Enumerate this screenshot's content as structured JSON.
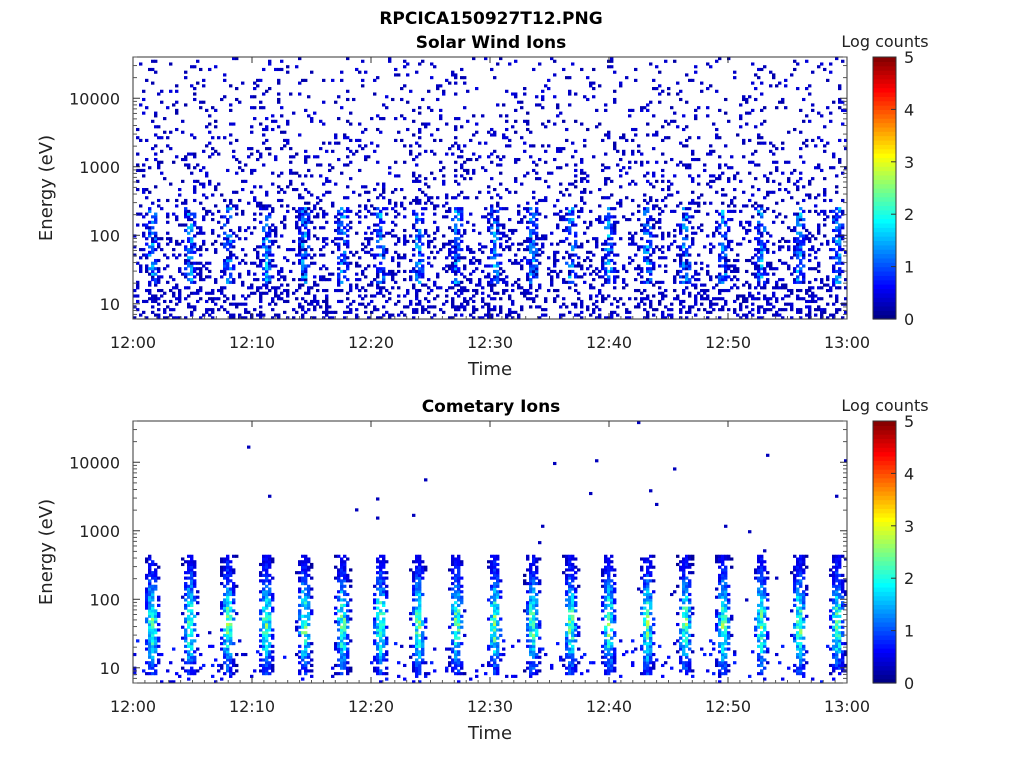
{
  "figure": {
    "title": "RPCICA150927T12.PNG"
  },
  "colormap": {
    "name": "jet",
    "stops": [
      "#00007f",
      "#0000ff",
      "#007fff",
      "#00ffff",
      "#7fff7f",
      "#ffff00",
      "#ff7f00",
      "#ff0000",
      "#7f0000"
    ]
  },
  "chart_data": [
    {
      "type": "heatmap",
      "title": "Solar Wind Ions",
      "xlabel": "Time",
      "ylabel": "Energy (eV)",
      "x_tick_labels": [
        "12:00",
        "12:10",
        "12:20",
        "12:30",
        "12:40",
        "12:50",
        "13:00"
      ],
      "x_range": [
        "12:00",
        "13:00"
      ],
      "y_scale": "log",
      "y_tick_labels": [
        "10",
        "100",
        "1000",
        "10000"
      ],
      "y_range": [
        6,
        40000
      ],
      "colorbar": {
        "label": "Log counts",
        "range": [
          0,
          5
        ],
        "tick_labels": [
          "0",
          "1",
          "2",
          "3",
          "4",
          "5"
        ]
      },
      "description_values": {
        "background_level_log_counts": 0.3,
        "burst_peak_log_counts": 1.8,
        "burst_period_minutes": 3.2,
        "burst_energy_range_eV": [
          20,
          250
        ],
        "sparse_counts_energy_range_eV": [
          6,
          30000
        ]
      }
    },
    {
      "type": "heatmap",
      "title": "Cometary Ions",
      "xlabel": "Time",
      "ylabel": "Energy (eV)",
      "x_tick_labels": [
        "12:00",
        "12:10",
        "12:20",
        "12:30",
        "12:40",
        "12:50",
        "13:00"
      ],
      "x_range": [
        "12:00",
        "13:00"
      ],
      "y_scale": "log",
      "y_tick_labels": [
        "10",
        "100",
        "1000",
        "10000"
      ],
      "y_range": [
        6,
        40000
      ],
      "colorbar": {
        "label": "Log counts",
        "range": [
          0,
          5
        ],
        "tick_labels": [
          "0",
          "1",
          "2",
          "3",
          "4",
          "5"
        ]
      },
      "description_values": {
        "burst_peak_log_counts": 2.9,
        "burst_period_minutes": 3.2,
        "burst_energy_range_eV": [
          8,
          450
        ],
        "burst_center_energy_eV": 45
      }
    }
  ]
}
